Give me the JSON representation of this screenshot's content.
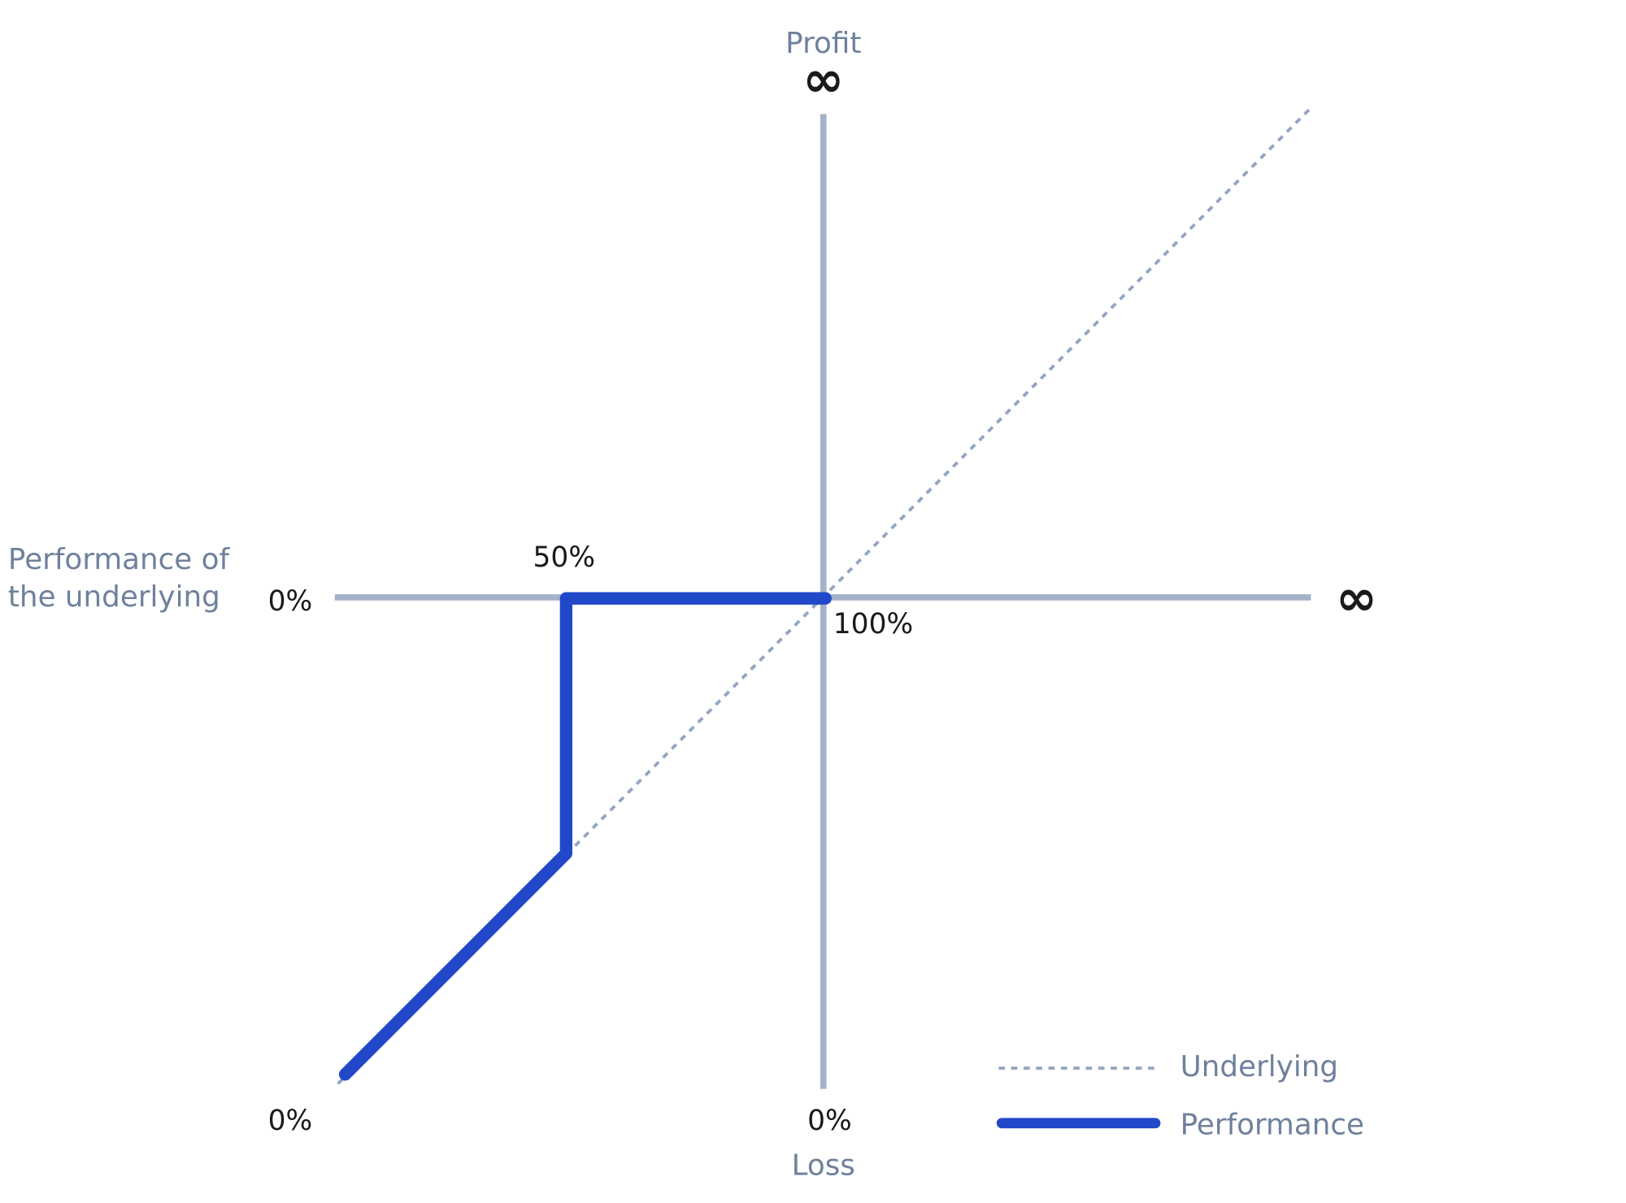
{
  "axis": {
    "y_top": "Profit",
    "y_top_symbol": "∞",
    "x_right_symbol": "∞",
    "y_bottom": "Loss",
    "x_title": [
      "Performance of",
      "the underlying"
    ]
  },
  "labels": {
    "left_zero": "0%",
    "barrier": "50%",
    "strike": "100%",
    "bottom_left_zero": "0%",
    "bottom_zero": "0%"
  },
  "legend": [
    "Underlying",
    "Performance"
  ]
}
